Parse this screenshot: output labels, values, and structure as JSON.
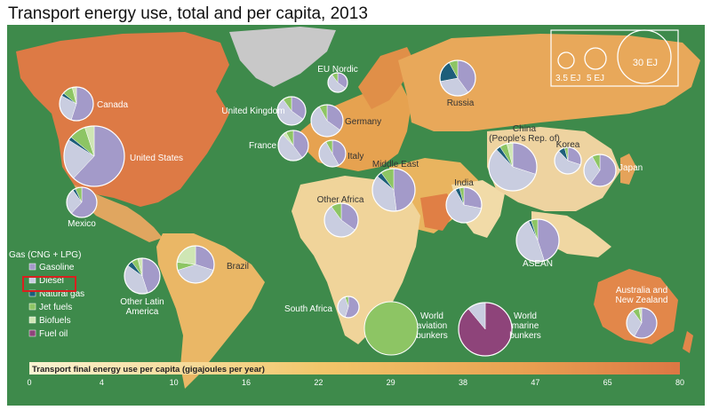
{
  "title": "Transport energy use, total and per capita, 2013",
  "colors": {
    "ocean": "#3e8a4b",
    "gasoline": "#a39ac9",
    "diesel": "#c9cde0",
    "natural_gas": "#1d5e7a",
    "jet_fuels": "#8dc564",
    "biofuels": "#cfe6b4",
    "fuel_oil": "#8e447a",
    "gas": "#c9cde0",
    "highlight_box": "#d9201f"
  },
  "legend": {
    "header": "Gas (CNG + LPG)",
    "items": [
      {
        "label": "Gasoline",
        "color_key": "gasoline"
      },
      {
        "label": "Diesel",
        "color_key": "diesel",
        "highlighted": true
      },
      {
        "label": "Natural gas",
        "color_key": "natural_gas"
      },
      {
        "label": "Jet fuels",
        "color_key": "jet_fuels"
      },
      {
        "label": "Biofuels",
        "color_key": "biofuels"
      },
      {
        "label": "Fuel oil",
        "color_key": "fuel_oil"
      }
    ]
  },
  "size_legend": [
    "3.5 EJ",
    "5 EJ",
    "30 EJ"
  ],
  "colorbar": {
    "label": "Transport final energy use per capita (gigajoules per year)",
    "ticks": [
      "0",
      "4",
      "10",
      "16",
      "22",
      "29",
      "38",
      "47",
      "65",
      "80"
    ]
  },
  "regions": [
    {
      "name": "Canada",
      "label": "Canada"
    },
    {
      "name": "United States",
      "label": "United States"
    },
    {
      "name": "Mexico",
      "label": "Mexico"
    },
    {
      "name": "Other Latin America",
      "label": "Other Latin\nAmerica"
    },
    {
      "name": "Brazil",
      "label": "Brazil"
    },
    {
      "name": "United Kingdom",
      "label": "United Kingdom"
    },
    {
      "name": "EU Nordic",
      "label": "EU Nordic"
    },
    {
      "name": "Germany",
      "label": "Germany"
    },
    {
      "name": "France",
      "label": "France"
    },
    {
      "name": "Italy",
      "label": "Italy"
    },
    {
      "name": "Russia",
      "label": "Russia"
    },
    {
      "name": "Middle East",
      "label": "Middle East"
    },
    {
      "name": "Other Africa",
      "label": "Other Africa"
    },
    {
      "name": "South Africa",
      "label": "South Africa"
    },
    {
      "name": "India",
      "label": "India"
    },
    {
      "name": "China (People's Rep. of)",
      "label": "China\n(People's Rep. of)"
    },
    {
      "name": "Korea",
      "label": "Korea"
    },
    {
      "name": "Japan",
      "label": "Japan"
    },
    {
      "name": "ASEAN",
      "label": "ASEAN"
    },
    {
      "name": "Australia and New Zealand",
      "label": "Australia and\nNew Zealand"
    },
    {
      "name": "World aviation bunkers",
      "label": "World\naviation\nbunkers"
    },
    {
      "name": "World marine bunkers",
      "label": "World\nmarine\nbunkers"
    }
  ]
}
